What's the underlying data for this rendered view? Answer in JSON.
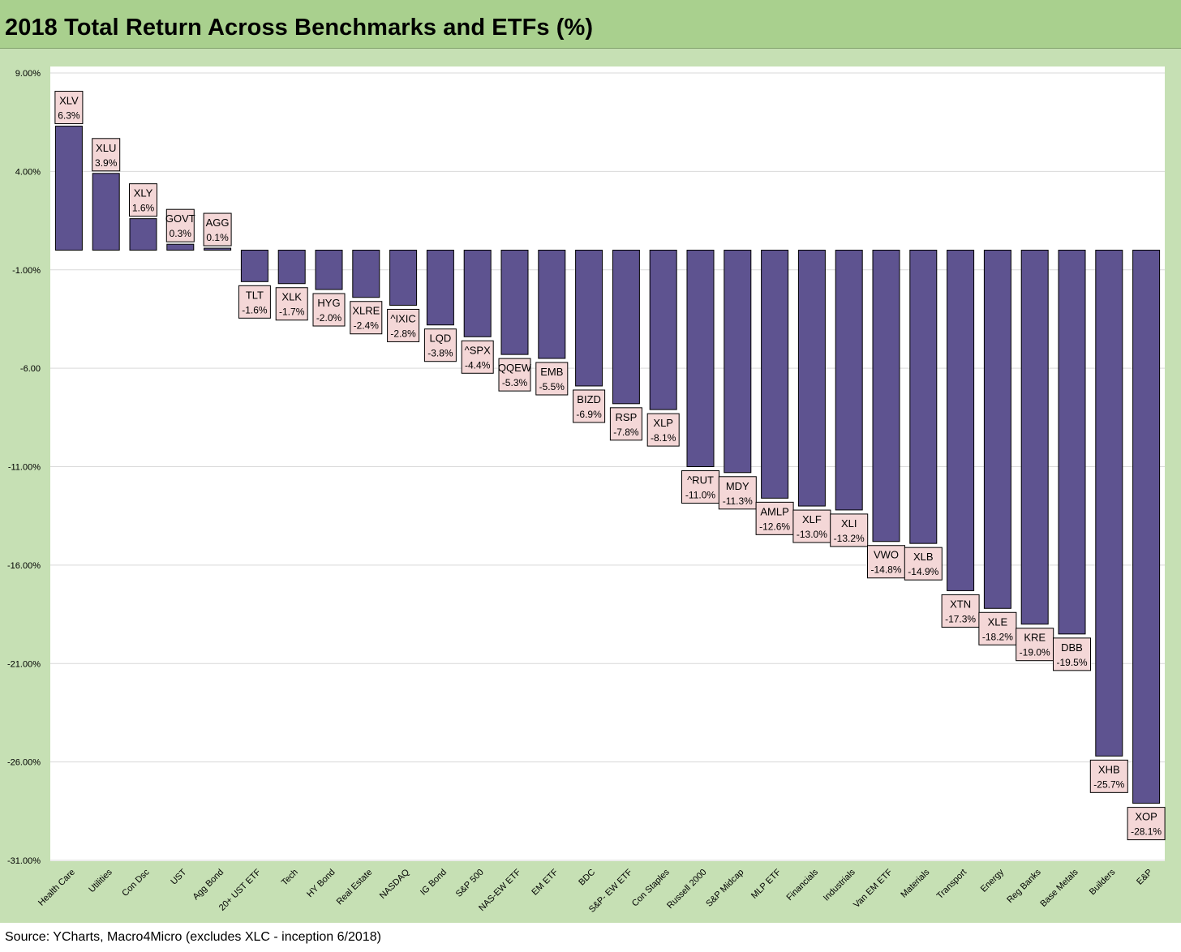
{
  "title": "2018 Total Return Across Benchmarks and ETFs (%)",
  "source": "Source: YCharts, Macro4Micro (excludes XLC - inception 6/2018)",
  "colors": {
    "bar": "#5e5390",
    "plot_background": "#ffffff",
    "frame_background": "#c6e0b4",
    "title_background": "#a9d08e",
    "label_background": "#f4d7d7",
    "gridline": "#d9d9d9"
  },
  "chart_data": {
    "type": "bar",
    "title": "2018 Total Return Across Benchmarks and ETFs (%)",
    "ylim": [
      -31,
      9
    ],
    "grid": true,
    "y_ticks": [
      9,
      4,
      -1,
      -6,
      -11,
      -16,
      -21,
      -26,
      -31
    ],
    "y_tick_labels": [
      "9.00%",
      "4.00%",
      "-1.00%",
      "-6.00",
      "-11.00%",
      "-16.00%",
      "-21.00%",
      "-26.00%",
      "-31.00%"
    ],
    "categories": [
      "Health Care",
      "Utilities",
      "Con Dsc",
      "UST",
      "Agg Bond",
      "20+ UST ETF",
      "Tech",
      "HY Bond",
      "Real Estate",
      "NASDAQ",
      "IG Bond",
      "S&P 500",
      "NAS-EW ETF",
      "EM ETF",
      "BDC",
      "S&P- EW ETF",
      "Con Staples",
      "Russell 2000",
      "S&P Midcap",
      "MLP ETF",
      "Financials",
      "Industrials",
      "Van EM ETF",
      "Materials",
      "Transport",
      "Energy",
      "Reg Banks",
      "Base Metals",
      "Builders",
      "E&P"
    ],
    "tickers": [
      "XLV",
      "XLU",
      "XLY",
      "GOVT",
      "AGG",
      "TLT",
      "XLK",
      "HYG",
      "XLRE",
      "^IXIC",
      "LQD",
      "^SPX",
      "QQEW",
      "EMB",
      "BIZD",
      "RSP",
      "XLP",
      "^RUT",
      "MDY",
      "AMLP",
      "XLF",
      "XLI",
      "VWO",
      "XLB",
      "XTN",
      "XLE",
      "KRE",
      "DBB",
      "XHB",
      "XOP"
    ],
    "values": [
      6.3,
      3.9,
      1.6,
      0.3,
      0.1,
      -1.6,
      -1.7,
      -2.0,
      -2.4,
      -2.8,
      -3.8,
      -4.4,
      -5.3,
      -5.5,
      -6.9,
      -7.8,
      -8.1,
      -11.0,
      -11.3,
      -12.6,
      -13.0,
      -13.2,
      -14.8,
      -14.9,
      -17.3,
      -18.2,
      -19.0,
      -19.5,
      -25.7,
      -28.1
    ],
    "data_labels": [
      "6.3%",
      "3.9%",
      "1.6%",
      "0.3%",
      "0.1%",
      "-1.6%",
      "-1.7%",
      "-2.0%",
      "-2.4%",
      "-2.8%",
      "-3.8%",
      "-4.4%",
      "-5.3%",
      "-5.5%",
      "-6.9%",
      "-7.8%",
      "-8.1%",
      "-11.0%",
      "-11.3%",
      "-12.6%",
      "-13.0%",
      "-13.2%",
      "-14.8%",
      "-14.9%",
      "-17.3%",
      "-18.2%",
      "-19.0%",
      "-19.5%",
      "-25.7%",
      "-28.1%"
    ]
  }
}
